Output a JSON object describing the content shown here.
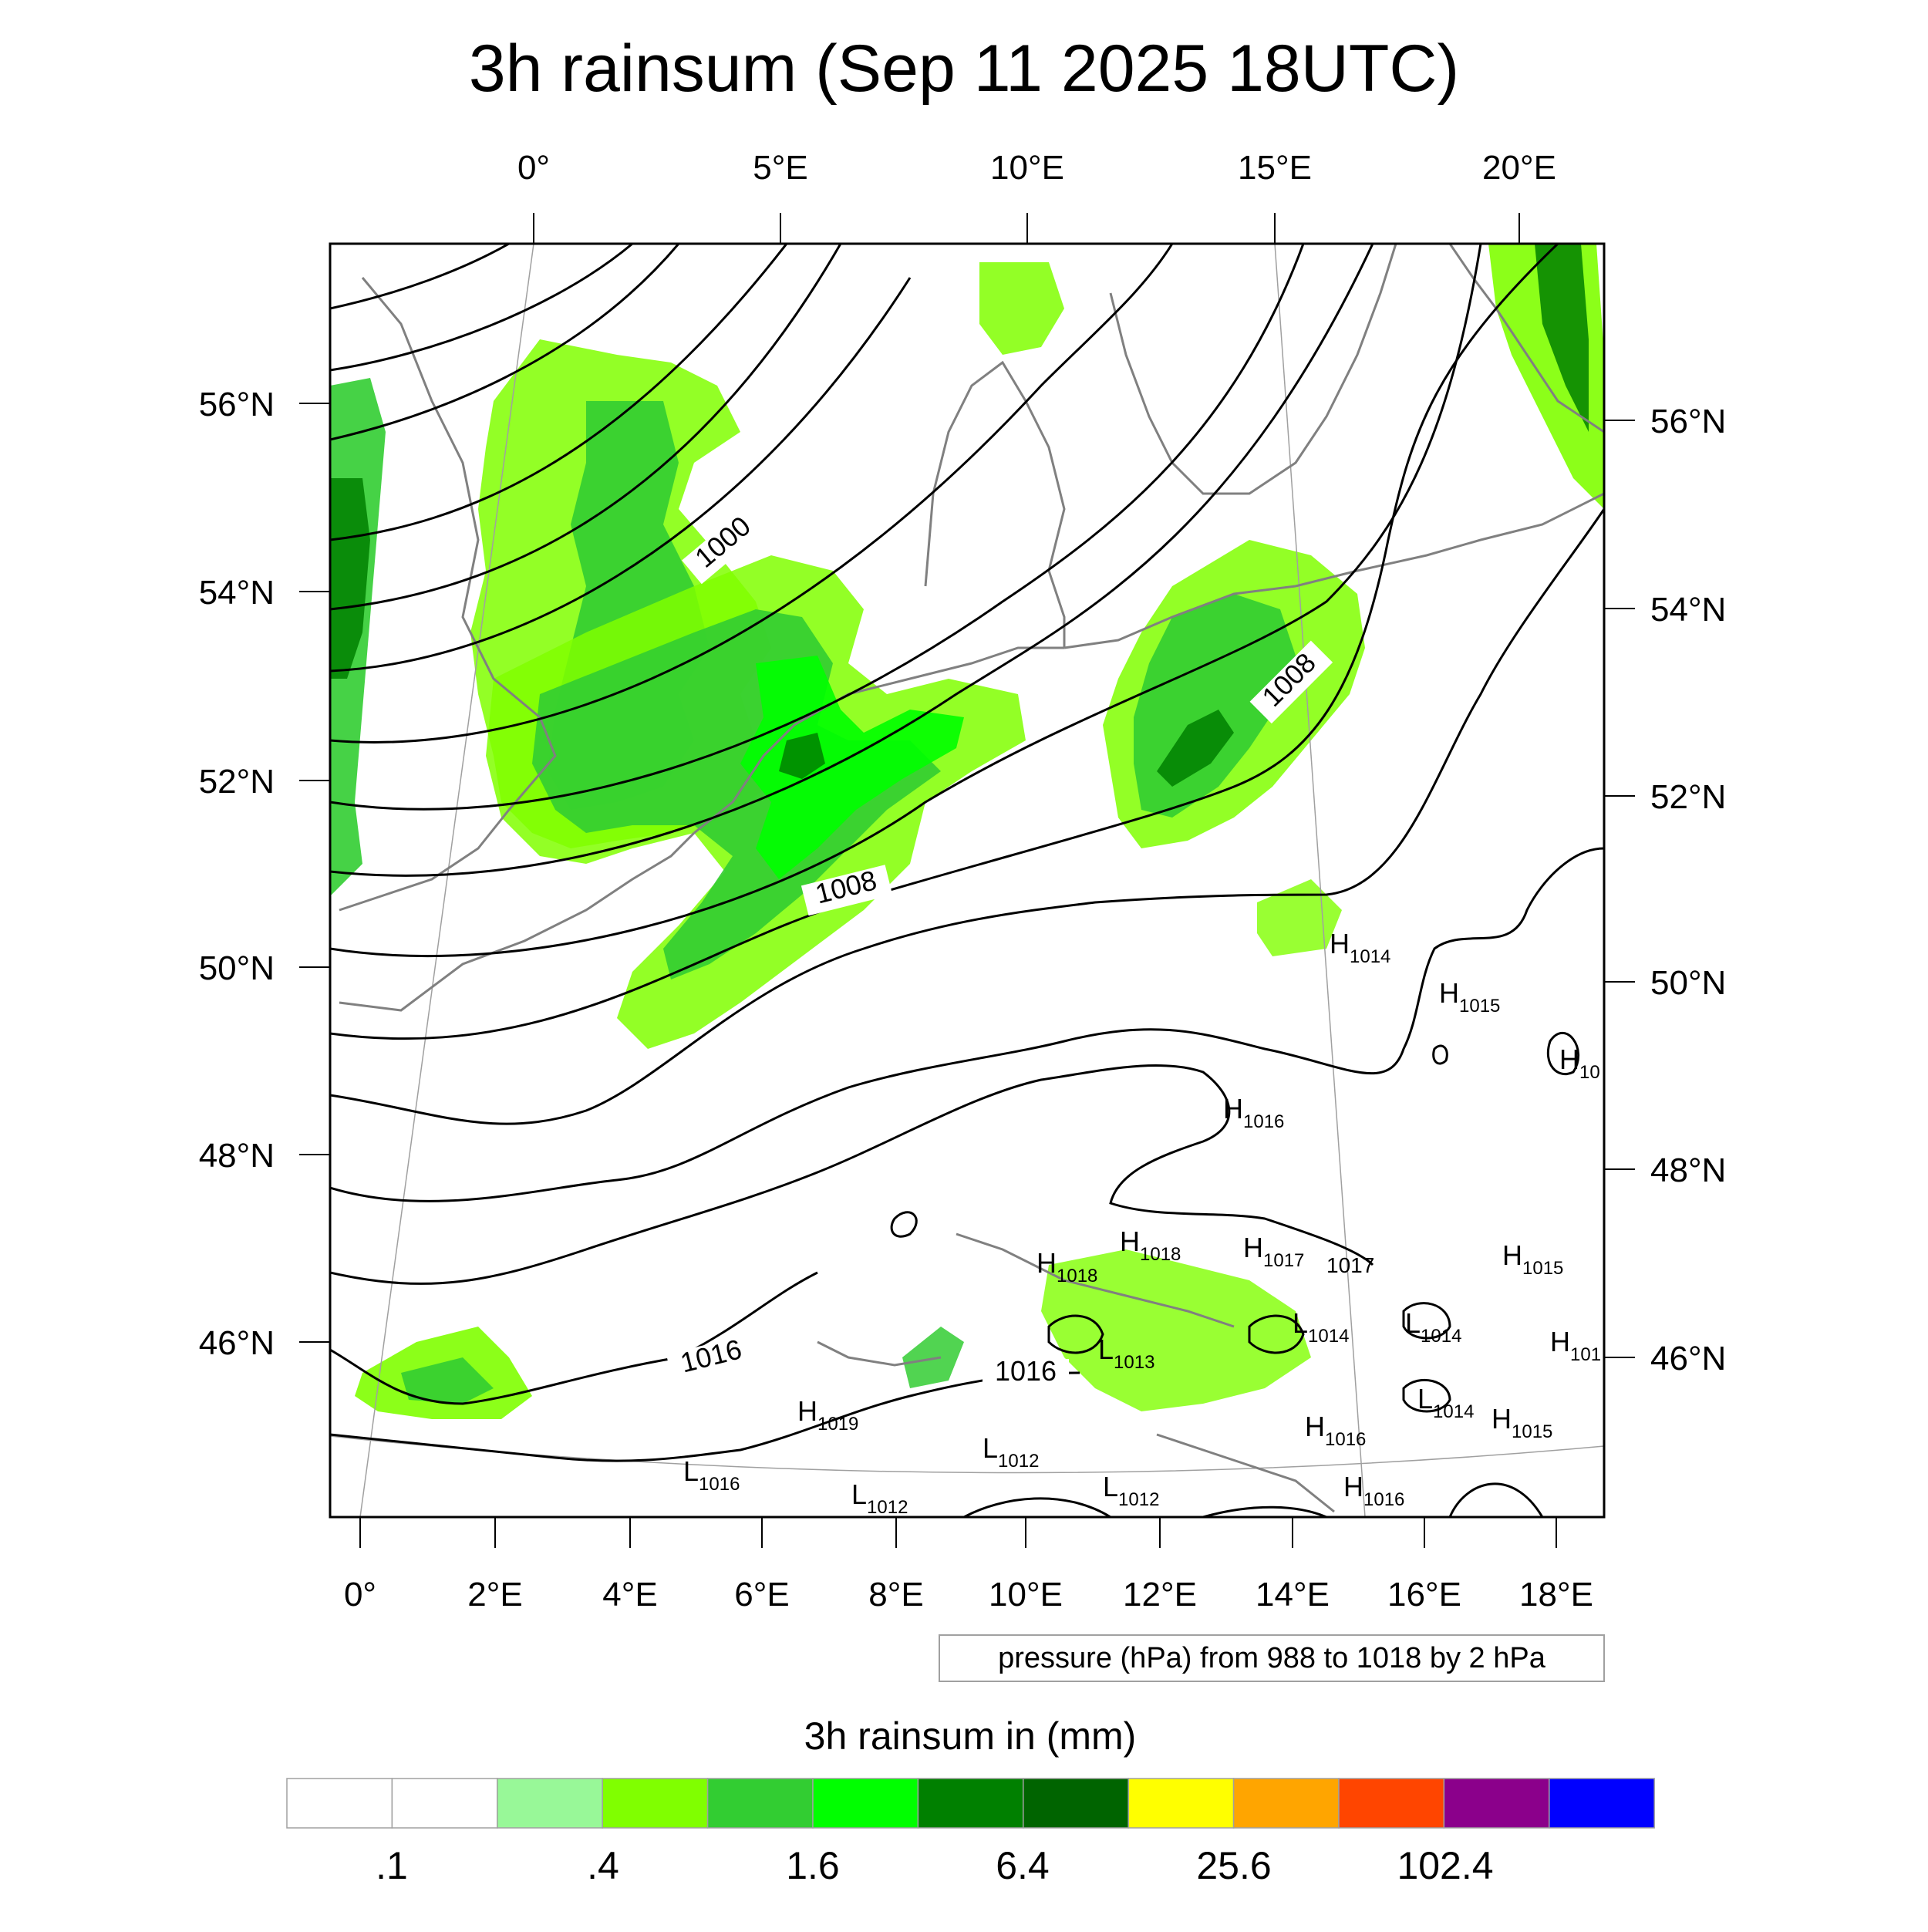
{
  "title": "3h rainsum (Sep 11 2025 18UTC)",
  "top_lon_labels": [
    "0°",
    "5°E",
    "10°E",
    "15°E",
    "20°E"
  ],
  "bottom_lon_labels": [
    "0°",
    "2°E",
    "4°E",
    "6°E",
    "8°E",
    "10°E",
    "12°E",
    "14°E",
    "16°E",
    "18°E"
  ],
  "left_lat_labels": [
    "56°N",
    "54°N",
    "52°N",
    "50°N",
    "48°N",
    "46°N"
  ],
  "right_lat_labels": [
    "56°N",
    "54°N",
    "52°N",
    "50°N",
    "48°N",
    "46°N"
  ],
  "contour_info": "pressure (hPa) from 988 to 1018 by 2 hPa",
  "isobar_labels": [
    "1000",
    "1008",
    "1008",
    "1016",
    "1016",
    "1017"
  ],
  "pressure_centers": [
    {
      "type": "H",
      "value": "1014"
    },
    {
      "type": "H",
      "value": "1015"
    },
    {
      "type": "H",
      "value": "10"
    },
    {
      "type": "H",
      "value": "1016"
    },
    {
      "type": "H",
      "value": "1018"
    },
    {
      "type": "H",
      "value": "1018"
    },
    {
      "type": "H",
      "value": "1017"
    },
    {
      "type": "H",
      "value": "1015"
    },
    {
      "type": "L",
      "value": "1014"
    },
    {
      "type": "L",
      "value": "1014"
    },
    {
      "type": "H",
      "value": "101"
    },
    {
      "type": "L",
      "value": "1013"
    },
    {
      "type": "H",
      "value": "1019"
    },
    {
      "type": "L",
      "value": "1014"
    },
    {
      "type": "H",
      "value": "1015"
    },
    {
      "type": "H",
      "value": "1016"
    },
    {
      "type": "L",
      "value": "1012"
    },
    {
      "type": "L",
      "value": "1016"
    },
    {
      "type": "L",
      "value": "1012"
    },
    {
      "type": "L",
      "value": "1012"
    },
    {
      "type": "H",
      "value": "1016"
    }
  ],
  "colorbar": {
    "title": "3h rainsum in (mm)",
    "colors": [
      "#ffffff",
      "#ffffff",
      "#98f898",
      "#80ff00",
      "#32cd32",
      "#00ff00",
      "#008000",
      "#006400",
      "#ffff00",
      "#ffa500",
      "#ff4500",
      "#8b008b",
      "#0000ff"
    ],
    "tick_labels": [
      ".1",
      ".4",
      "1.6",
      "6.4",
      "25.6",
      "102.4"
    ]
  },
  "colors": {
    "isobar": "#000000",
    "coastline": "#808080",
    "gridline": "#a0a0a0"
  }
}
